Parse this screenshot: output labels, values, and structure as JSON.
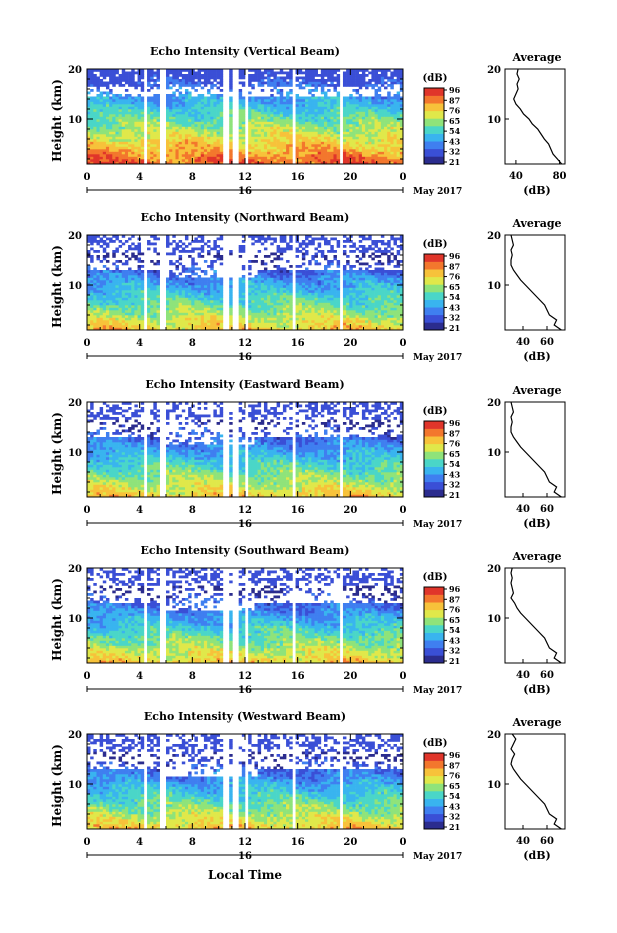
{
  "figure": {
    "xlabel": "Local Time",
    "date_label": "May 2017",
    "day_label": "16",
    "ylabel": "Height (km)",
    "colorbar_unit": "(dB)",
    "avg_title": "Average",
    "avg_xlabel": "(dB)"
  },
  "colors": {
    "colorscale": [
      "#2b2c8e",
      "#3a4fd6",
      "#3f7ff0",
      "#39b4ef",
      "#4ad6c8",
      "#8fe37a",
      "#e0e84a",
      "#f7c23a",
      "#f3772d",
      "#e0352a"
    ],
    "gap_color": "#ffffff",
    "line_color": "#000000"
  },
  "chart_data": [
    {
      "type": "heatmap",
      "title": "Echo Intensity (Vertical Beam)",
      "x_ticks": [
        "0",
        "4",
        "8",
        "12",
        "16",
        "20",
        "0"
      ],
      "xlim": [
        0,
        24
      ],
      "y_ticks": [
        "20",
        "10"
      ],
      "ylim": [
        1,
        20
      ],
      "colorbar_ticks": [
        "96",
        "87",
        "76",
        "65",
        "54",
        "43",
        "32",
        "21"
      ],
      "data_gaps_hours": [
        [
          4.2,
          4.5
        ],
        [
          5.6,
          5.9
        ],
        [
          10.3,
          10.7
        ],
        [
          11.1,
          11.4
        ],
        [
          11.9,
          12.2
        ],
        [
          15.5,
          15.8
        ],
        [
          19.1,
          19.4
        ]
      ],
      "average_profile": {
        "x_ticks": [
          "40",
          "80"
        ],
        "xlim": [
          30,
          85
        ],
        "heights_km": [
          1,
          2,
          3,
          4,
          5,
          6,
          7,
          8,
          9,
          10,
          11,
          12,
          13,
          14,
          15,
          16,
          17,
          18,
          19,
          20
        ],
        "values_db": [
          82,
          78,
          74,
          72,
          70,
          66,
          63,
          60,
          55,
          52,
          47,
          44,
          40,
          38,
          40,
          42,
          41,
          43,
          41,
          42
        ]
      }
    },
    {
      "type": "heatmap",
      "title": "Echo Intensity (Northward Beam)",
      "x_ticks": [
        "0",
        "4",
        "8",
        "12",
        "16",
        "20",
        "0"
      ],
      "xlim": [
        0,
        24
      ],
      "y_ticks": [
        "20",
        "10"
      ],
      "ylim": [
        1,
        20
      ],
      "colorbar_ticks": [
        "96",
        "87",
        "76",
        "65",
        "54",
        "43",
        "32",
        "21"
      ],
      "data_gaps_hours": [
        [
          4.2,
          4.5
        ],
        [
          5.6,
          5.9
        ],
        [
          10.3,
          10.7
        ],
        [
          11.1,
          11.4
        ],
        [
          11.9,
          12.2
        ],
        [
          15.5,
          15.8
        ],
        [
          19.1,
          19.4
        ]
      ],
      "average_profile": {
        "x_ticks": [
          "40",
          "60"
        ],
        "xlim": [
          25,
          75
        ],
        "heights_km": [
          1,
          2,
          3,
          4,
          5,
          6,
          7,
          8,
          9,
          10,
          11,
          12,
          13,
          14,
          15,
          16,
          17,
          18,
          19,
          20
        ],
        "values_db": [
          72,
          66,
          68,
          62,
          60,
          58,
          54,
          50,
          46,
          42,
          38,
          35,
          32,
          30,
          30,
          31,
          30,
          32,
          31,
          30
        ]
      }
    },
    {
      "type": "heatmap",
      "title": "Echo Intensity (Eastward Beam)",
      "x_ticks": [
        "0",
        "4",
        "8",
        "12",
        "16",
        "20",
        "0"
      ],
      "xlim": [
        0,
        24
      ],
      "y_ticks": [
        "20",
        "10"
      ],
      "ylim": [
        1,
        20
      ],
      "colorbar_ticks": [
        "96",
        "87",
        "76",
        "65",
        "54",
        "43",
        "32",
        "21"
      ],
      "data_gaps_hours": [
        [
          4.2,
          4.5
        ],
        [
          5.6,
          5.9
        ],
        [
          10.3,
          10.7
        ],
        [
          11.1,
          11.4
        ],
        [
          11.9,
          12.2
        ],
        [
          15.5,
          15.8
        ],
        [
          19.1,
          19.4
        ]
      ],
      "average_profile": {
        "x_ticks": [
          "40",
          "60"
        ],
        "xlim": [
          25,
          75
        ],
        "heights_km": [
          1,
          2,
          3,
          4,
          5,
          6,
          7,
          8,
          9,
          10,
          11,
          12,
          13,
          14,
          15,
          16,
          17,
          18,
          19,
          20
        ],
        "values_db": [
          72,
          66,
          68,
          62,
          60,
          58,
          54,
          50,
          46,
          42,
          38,
          35,
          32,
          30,
          30,
          31,
          30,
          32,
          31,
          30
        ]
      }
    },
    {
      "type": "heatmap",
      "title": "Echo Intensity (Southward Beam)",
      "x_ticks": [
        "0",
        "4",
        "8",
        "12",
        "16",
        "20",
        "0"
      ],
      "xlim": [
        0,
        24
      ],
      "y_ticks": [
        "20",
        "10"
      ],
      "ylim": [
        1,
        20
      ],
      "colorbar_ticks": [
        "96",
        "87",
        "76",
        "65",
        "54",
        "43",
        "32",
        "21"
      ],
      "data_gaps_hours": [
        [
          4.2,
          4.5
        ],
        [
          5.6,
          5.9
        ],
        [
          10.3,
          10.7
        ],
        [
          11.1,
          11.4
        ],
        [
          11.9,
          12.2
        ],
        [
          15.5,
          15.8
        ],
        [
          19.1,
          19.4
        ]
      ],
      "average_profile": {
        "x_ticks": [
          "40",
          "60"
        ],
        "xlim": [
          25,
          75
        ],
        "heights_km": [
          1,
          2,
          3,
          4,
          5,
          6,
          7,
          8,
          9,
          10,
          11,
          12,
          13,
          14,
          15,
          16,
          17,
          18,
          19,
          20
        ],
        "values_db": [
          72,
          66,
          68,
          62,
          60,
          58,
          54,
          50,
          46,
          42,
          38,
          35,
          33,
          30,
          32,
          31,
          30,
          31,
          30,
          31
        ]
      }
    },
    {
      "type": "heatmap",
      "title": "Echo Intensity (Westward Beam)",
      "x_ticks": [
        "0",
        "4",
        "8",
        "12",
        "16",
        "20",
        "0"
      ],
      "xlim": [
        0,
        24
      ],
      "y_ticks": [
        "20",
        "10"
      ],
      "ylim": [
        1,
        20
      ],
      "colorbar_ticks": [
        "96",
        "87",
        "76",
        "65",
        "54",
        "43",
        "32",
        "21"
      ],
      "data_gaps_hours": [
        [
          4.2,
          4.5
        ],
        [
          5.6,
          5.9
        ],
        [
          10.3,
          10.7
        ],
        [
          11.1,
          11.4
        ],
        [
          11.9,
          12.2
        ],
        [
          15.5,
          15.8
        ],
        [
          19.1,
          19.4
        ]
      ],
      "average_profile": {
        "x_ticks": [
          "40",
          "60"
        ],
        "xlim": [
          25,
          75
        ],
        "heights_km": [
          1,
          2,
          3,
          4,
          5,
          6,
          7,
          8,
          9,
          10,
          11,
          12,
          13,
          14,
          15,
          16,
          17,
          18,
          19,
          20
        ],
        "values_db": [
          72,
          66,
          68,
          62,
          60,
          58,
          54,
          50,
          46,
          42,
          38,
          35,
          32,
          30,
          31,
          33,
          30,
          32,
          34,
          31
        ]
      }
    }
  ]
}
